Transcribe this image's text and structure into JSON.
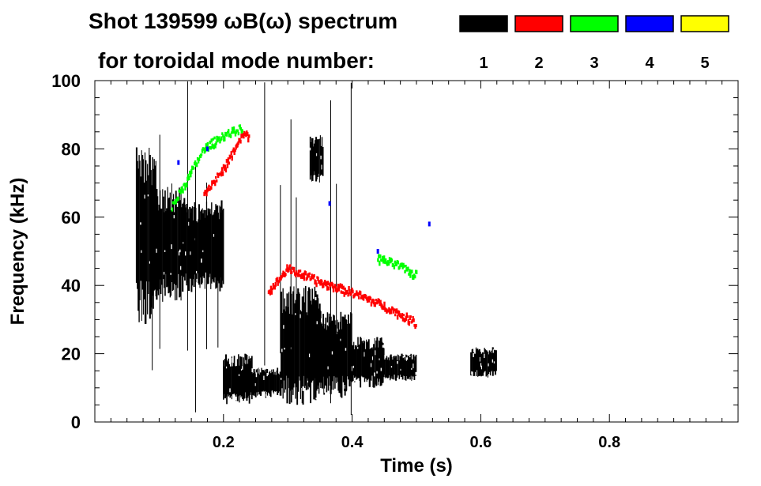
{
  "chart_data": {
    "type": "spectrogram",
    "title_line1": "Shot 139599 ωB(ω) spectrum",
    "title_line2": "for toroidal mode number:",
    "xlabel": "Time (s)",
    "ylabel": "Frequency (kHz)",
    "xlim": [
      0.0,
      1.0
    ],
    "ylim": [
      0,
      100
    ],
    "x_major_ticks": [
      0.2,
      0.4,
      0.6,
      0.8
    ],
    "x_tick_labels": [
      "0.2",
      "0.4",
      "0.6",
      "0.8"
    ],
    "y_major_ticks": [
      0,
      20,
      40,
      60,
      80,
      100
    ],
    "y_tick_labels": [
      "0",
      "20",
      "40",
      "60",
      "80",
      "100"
    ],
    "legend": [
      {
        "n": "1",
        "color": "#000000"
      },
      {
        "n": "2",
        "color": "#ff0000"
      },
      {
        "n": "3",
        "color": "#00ff00"
      },
      {
        "n": "4",
        "color": "#0000ff"
      },
      {
        "n": "5",
        "color": "#ffff00"
      }
    ],
    "modes": [
      {
        "n": 1,
        "color": "#000000",
        "regions": [
          {
            "t0": 0.065,
            "t1": 0.095,
            "f0": 28,
            "f1": 82
          },
          {
            "t0": 0.095,
            "t1": 0.14,
            "f0": 35,
            "f1": 70
          },
          {
            "t0": 0.14,
            "t1": 0.2,
            "f0": 38,
            "f1": 65
          },
          {
            "t0": 0.2,
            "t1": 0.245,
            "f0": 5,
            "f1": 20
          },
          {
            "t0": 0.245,
            "t1": 0.29,
            "f0": 7,
            "f1": 16
          },
          {
            "t0": 0.29,
            "t1": 0.35,
            "f0": 5,
            "f1": 40
          },
          {
            "t0": 0.35,
            "t1": 0.4,
            "f0": 7,
            "f1": 33
          },
          {
            "t0": 0.4,
            "t1": 0.45,
            "f0": 10,
            "f1": 25
          },
          {
            "t0": 0.45,
            "t1": 0.5,
            "f0": 12,
            "f1": 20
          },
          {
            "t0": 0.335,
            "t1": 0.355,
            "f0": 70,
            "f1": 84
          },
          {
            "t0": 0.585,
            "t1": 0.625,
            "f0": 13,
            "f1": 22
          }
        ]
      },
      {
        "n": 2,
        "color": "#ff0000",
        "track": [
          [
            0.27,
            38
          ],
          [
            0.3,
            45
          ],
          [
            0.35,
            41
          ],
          [
            0.4,
            38
          ],
          [
            0.45,
            34
          ],
          [
            0.5,
            29
          ]
        ],
        "track2": [
          [
            0.17,
            67
          ],
          [
            0.2,
            74
          ],
          [
            0.23,
            84
          ],
          [
            0.24,
            84
          ]
        ]
      },
      {
        "n": 3,
        "color": "#00ff00",
        "track": [
          [
            0.12,
            63
          ],
          [
            0.17,
            80
          ],
          [
            0.2,
            84
          ],
          [
            0.23,
            86
          ]
        ],
        "track2": [
          [
            0.44,
            48
          ],
          [
            0.47,
            46
          ],
          [
            0.5,
            43
          ]
        ]
      },
      {
        "n": 4,
        "color": "#0000ff",
        "points": [
          [
            0.13,
            76
          ],
          [
            0.175,
            80
          ],
          [
            0.365,
            64
          ],
          [
            0.44,
            50
          ],
          [
            0.52,
            58
          ]
        ]
      },
      {
        "n": 5,
        "color": "#ffff00",
        "points": []
      }
    ]
  }
}
